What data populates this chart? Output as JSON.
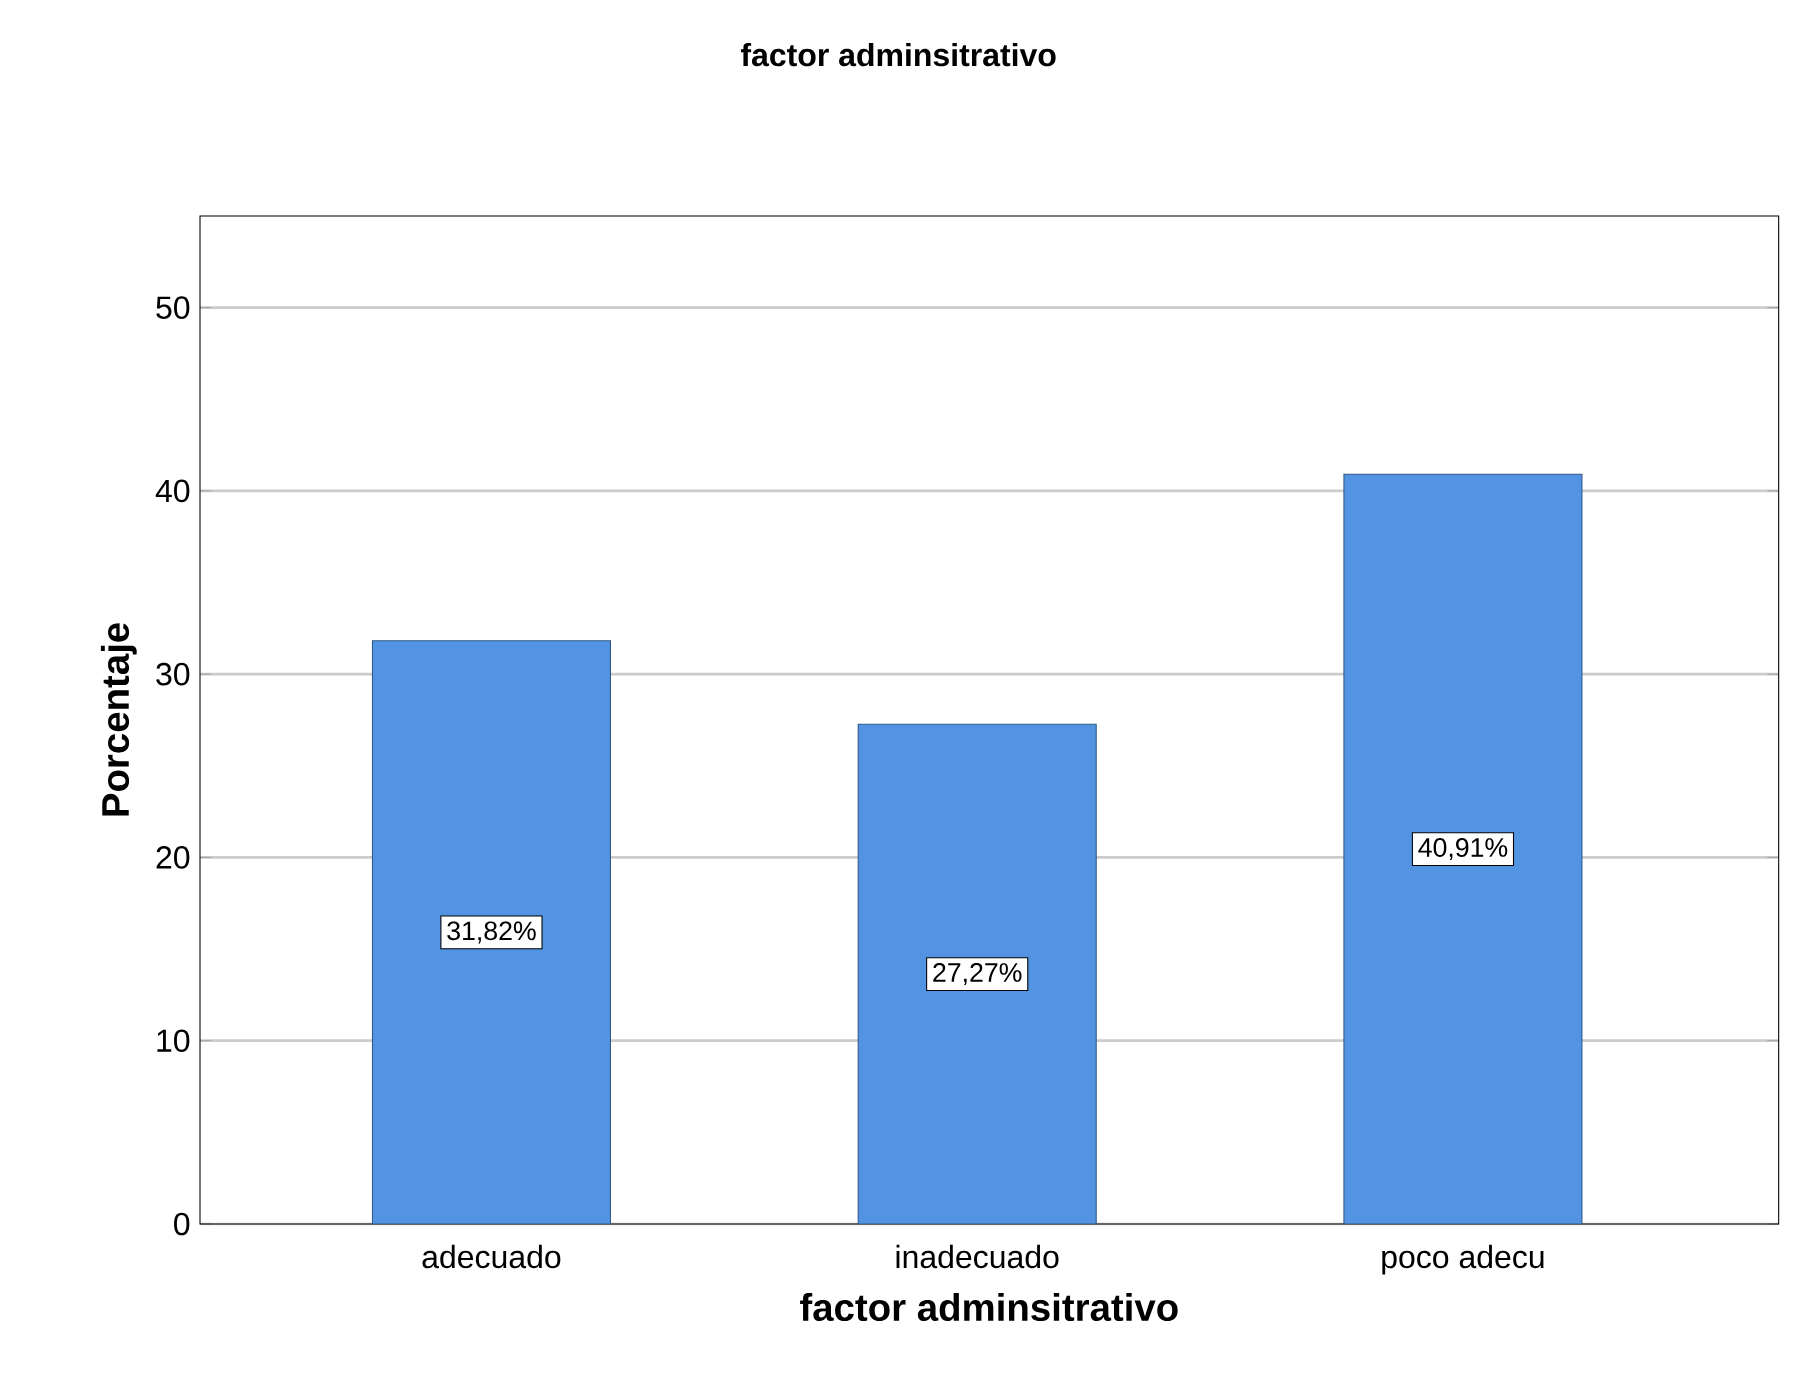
{
  "chart_data": {
    "type": "bar",
    "title": "factor adminsitrativo",
    "xlabel": "factor adminsitrativo",
    "ylabel": "Porcentaje",
    "categories": [
      "adecuado",
      "inadecuado",
      "poco adecu"
    ],
    "values": [
      31.82,
      27.27,
      40.91
    ],
    "value_labels": [
      "31,82%",
      "27,27%",
      "40,91%"
    ],
    "color": "#5294e2",
    "ylim": [
      0,
      55
    ],
    "yticks": [
      0,
      10,
      20,
      30,
      40,
      50
    ],
    "grid": "y"
  }
}
